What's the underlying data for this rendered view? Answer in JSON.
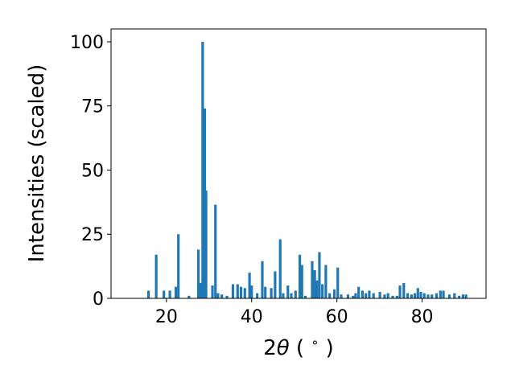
{
  "chart_data": {
    "type": "bar",
    "title": "",
    "xlabel_parts": [
      "2",
      "θ",
      " ( ",
      "∘",
      " )"
    ],
    "ylabel": "Intensities (scaled)",
    "xlim": [
      7,
      95
    ],
    "ylim": [
      0,
      105
    ],
    "xticks": [
      20,
      40,
      60,
      80
    ],
    "yticks": [
      0,
      25,
      50,
      75,
      100
    ],
    "grid": false,
    "bar_width": 0.6,
    "bar_color": "#1f77b4",
    "x": [
      15.8,
      17.6,
      19.4,
      20.8,
      22.2,
      22.8,
      25.3,
      27.5,
      28.0,
      28.5,
      29.0,
      29.3,
      30.8,
      31.5,
      32.1,
      33.0,
      34.2,
      35.6,
      36.7,
      37.5,
      38.4,
      39.5,
      40.0,
      41.3,
      42.5,
      43.2,
      44.6,
      45.5,
      46.7,
      47.4,
      48.5,
      49.3,
      50.3,
      51.3,
      51.8,
      52.6,
      54.2,
      54.8,
      55.3,
      55.9,
      56.6,
      57.4,
      58.3,
      59.4,
      60.2,
      61.0,
      62.6,
      63.8,
      64.4,
      65.1,
      66.0,
      66.8,
      67.6,
      68.6,
      70.1,
      71.2,
      72.0,
      73.1,
      74.1,
      74.8,
      75.7,
      76.6,
      77.5,
      78.3,
      79.0,
      79.7,
      80.5,
      81.4,
      82.3,
      83.4,
      84.3,
      85.0,
      86.4,
      87.6,
      88.7,
      89.6,
      90.3
    ],
    "values": [
      3,
      17,
      3,
      3,
      4.5,
      25,
      1,
      19,
      6,
      100,
      74,
      42,
      5,
      36.5,
      2,
      1.5,
      1,
      5.5,
      5.5,
      4.5,
      4,
      10,
      5,
      2,
      14.5,
      4.5,
      4,
      10.5,
      23,
      2,
      5,
      2,
      3,
      17,
      13,
      1,
      14.5,
      11,
      7,
      18,
      5.5,
      13,
      2,
      3.5,
      12,
      1.5,
      1.5,
      1,
      2,
      4.5,
      3,
      2,
      3,
      2,
      2.5,
      1.5,
      2,
      1,
      1,
      5,
      6,
      2,
      1.5,
      2,
      4,
      2.5,
      2,
      1.5,
      1.5,
      2,
      3,
      3,
      1.5,
      2,
      1,
      1.5,
      1.5
    ]
  }
}
